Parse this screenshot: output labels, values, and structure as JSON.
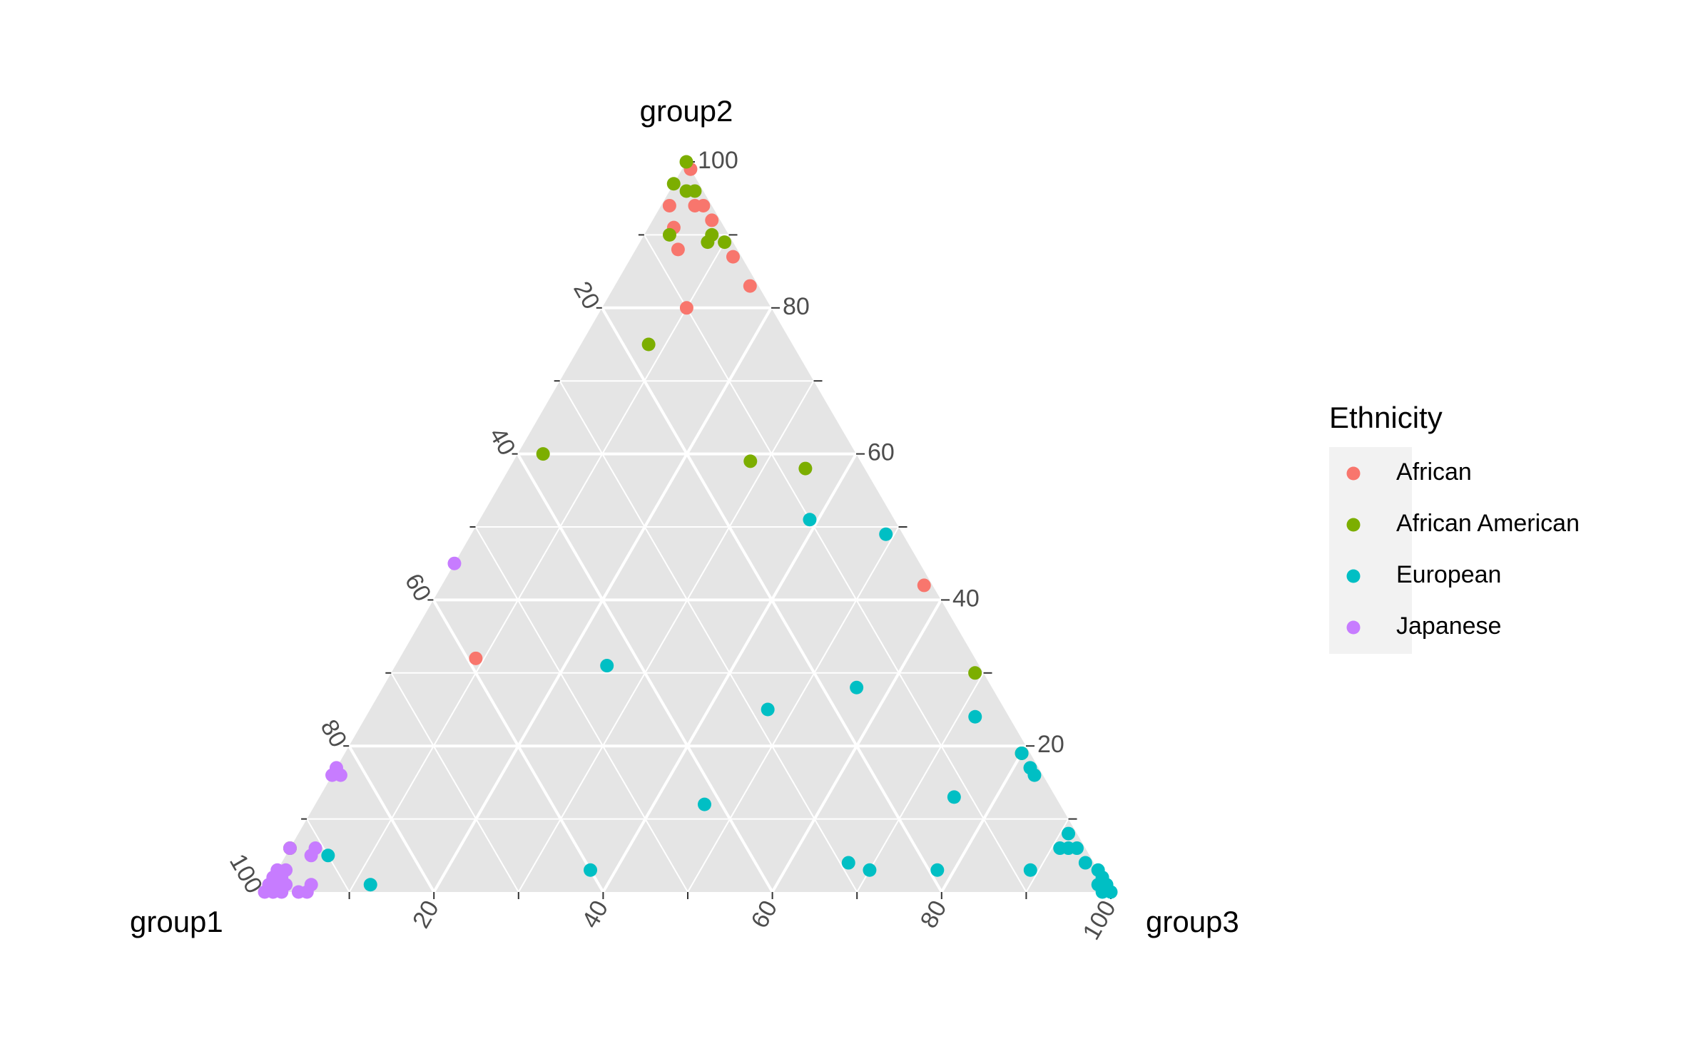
{
  "chart_data": {
    "type": "scatter",
    "subtype": "ternary",
    "axes": {
      "left": "group1",
      "top": "group2",
      "right": "group3"
    },
    "ticks": [
      "20",
      "40",
      "60",
      "80",
      "100"
    ],
    "grid": true,
    "legend": {
      "title": "Ethnicity",
      "placement": "right"
    },
    "series": [
      {
        "name": "African",
        "color": "#F8766D",
        "points": [
          {
            "group1": 0,
            "group2": 99,
            "group3": 1
          },
          {
            "group1": 5,
            "group2": 94,
            "group3": 1
          },
          {
            "group1": 2,
            "group2": 94,
            "group3": 4
          },
          {
            "group1": 1,
            "group2": 94,
            "group3": 5
          },
          {
            "group1": 1,
            "group2": 92,
            "group3": 7
          },
          {
            "group1": 6,
            "group2": 91,
            "group3": 3
          },
          {
            "group1": 7,
            "group2": 88,
            "group3": 5
          },
          {
            "group1": 1,
            "group2": 87,
            "group3": 12
          },
          {
            "group1": 1,
            "group2": 83,
            "group3": 16
          },
          {
            "group1": 10,
            "group2": 80,
            "group3": 10
          },
          {
            "group1": 1,
            "group2": 42,
            "group3": 57
          },
          {
            "group1": 59,
            "group2": 32,
            "group3": 9
          }
        ]
      },
      {
        "name": "African American",
        "color": "#7CAE00",
        "points": [
          {
            "group1": 0,
            "group2": 100,
            "group3": 0
          },
          {
            "group1": 3,
            "group2": 97,
            "group3": 0
          },
          {
            "group1": 2,
            "group2": 96,
            "group3": 2
          },
          {
            "group1": 1,
            "group2": 96,
            "group3": 3
          },
          {
            "group1": 7,
            "group2": 90,
            "group3": 3
          },
          {
            "group1": 3,
            "group2": 89,
            "group3": 8
          },
          {
            "group1": 1,
            "group2": 89,
            "group3": 10
          },
          {
            "group1": 2,
            "group2": 90,
            "group3": 8
          },
          {
            "group1": 17,
            "group2": 75,
            "group3": 8
          },
          {
            "group1": 37,
            "group2": 60,
            "group3": 3
          },
          {
            "group1": 13,
            "group2": 59,
            "group3": 28
          },
          {
            "group1": 7,
            "group2": 58,
            "group3": 35
          },
          {
            "group1": 1,
            "group2": 30,
            "group3": 69
          },
          {
            "group1": 1,
            "group2": 19,
            "group3": 80
          },
          {
            "group1": 94,
            "group2": 6,
            "group3": 0
          }
        ]
      },
      {
        "name": "European",
        "color": "#00BFC4",
        "points": [
          {
            "group1": 10,
            "group2": 51,
            "group3": 39
          },
          {
            "group1": 2,
            "group2": 49,
            "group3": 49
          },
          {
            "group1": 44,
            "group2": 31,
            "group3": 25
          },
          {
            "group1": 16,
            "group2": 28,
            "group3": 56
          },
          {
            "group1": 28,
            "group2": 25,
            "group3": 47
          },
          {
            "group1": 4,
            "group2": 24,
            "group3": 72
          },
          {
            "group1": 1,
            "group2": 19,
            "group3": 80
          },
          {
            "group1": 1,
            "group2": 17,
            "group3": 82
          },
          {
            "group1": 1,
            "group2": 16,
            "group3": 83
          },
          {
            "group1": 42,
            "group2": 12,
            "group3": 46
          },
          {
            "group1": 12,
            "group2": 13,
            "group3": 75
          },
          {
            "group1": 1,
            "group2": 8,
            "group3": 91
          },
          {
            "group1": 3,
            "group2": 6,
            "group3": 91
          },
          {
            "group1": 2,
            "group2": 6,
            "group3": 92
          },
          {
            "group1": 1,
            "group2": 6,
            "group3": 93
          },
          {
            "group1": 1,
            "group2": 4,
            "group3": 95
          },
          {
            "group1": 0,
            "group2": 3,
            "group3": 97
          },
          {
            "group1": 0,
            "group2": 2,
            "group3": 98
          },
          {
            "group1": 1,
            "group2": 1,
            "group3": 98
          },
          {
            "group1": 0,
            "group2": 1,
            "group3": 99
          },
          {
            "group1": 1,
            "group2": 0,
            "group3": 99
          },
          {
            "group1": 0,
            "group2": 0,
            "group3": 100
          },
          {
            "group1": 8,
            "group2": 3,
            "group3": 89
          },
          {
            "group1": 29,
            "group2": 4,
            "group3": 67
          },
          {
            "group1": 27,
            "group2": 3,
            "group3": 70
          },
          {
            "group1": 19,
            "group2": 3,
            "group3": 78
          },
          {
            "group1": 60,
            "group2": 3,
            "group3": 37
          },
          {
            "group1": 87,
            "group2": 1,
            "group3": 12
          },
          {
            "group1": 90,
            "group2": 5,
            "group3": 5
          }
        ]
      },
      {
        "name": "Japanese",
        "color": "#C77CFF",
        "points": [
          {
            "group1": 55,
            "group2": 45,
            "group3": 0
          },
          {
            "group1": 83,
            "group2": 17,
            "group3": 0
          },
          {
            "group1": 83,
            "group2": 16,
            "group3": 1
          },
          {
            "group1": 84,
            "group2": 16,
            "group3": 0
          },
          {
            "group1": 94,
            "group2": 6,
            "group3": 0
          },
          {
            "group1": 91,
            "group2": 6,
            "group3": 3
          },
          {
            "group1": 92,
            "group2": 5,
            "group3": 3
          },
          {
            "group1": 96,
            "group2": 3,
            "group3": 1
          },
          {
            "group1": 97,
            "group2": 3,
            "group3": 0
          },
          {
            "group1": 97,
            "group2": 2,
            "group3": 1
          },
          {
            "group1": 98,
            "group2": 2,
            "group3": 0
          },
          {
            "group1": 97,
            "group2": 1,
            "group3": 2
          },
          {
            "group1": 98,
            "group2": 1,
            "group3": 1
          },
          {
            "group1": 99,
            "group2": 1,
            "group3": 0
          },
          {
            "group1": 100,
            "group2": 0,
            "group3": 0
          },
          {
            "group1": 98,
            "group2": 0,
            "group3": 2
          },
          {
            "group1": 96,
            "group2": 0,
            "group3": 4
          },
          {
            "group1": 95,
            "group2": 0,
            "group3": 5
          },
          {
            "group1": 94,
            "group2": 1,
            "group3": 5
          },
          {
            "group1": 99,
            "group2": 0,
            "group3": 1
          }
        ]
      }
    ]
  }
}
